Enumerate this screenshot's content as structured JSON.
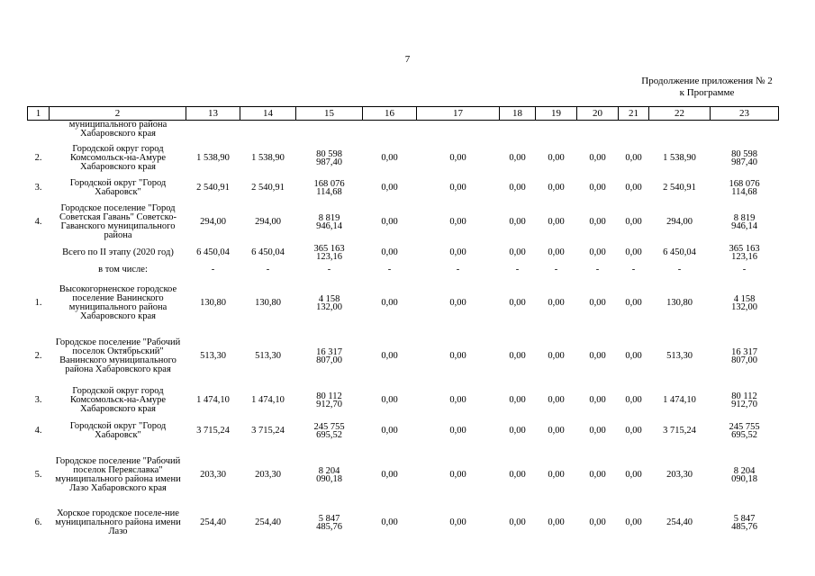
{
  "page_number": "7",
  "caption": {
    "line1": "Продолжение приложения № 2",
    "line2": "к Программе"
  },
  "columns": [
    "1",
    "2",
    "13",
    "14",
    "15",
    "16",
    "17",
    "18",
    "19",
    "20",
    "21",
    "22",
    "23"
  ],
  "continued_row": {
    "name": "муниципального района Хабаровского края"
  },
  "rows": [
    {
      "idx": "2.",
      "name": "Городской округ город Комсомольск-на-Амуре Хабаровского края",
      "c13": "1 538,90",
      "c14": "1 538,90",
      "c15a": "80 598",
      "c15b": "987,40",
      "c16": "0,00",
      "c17": "0,00",
      "c18": "0,00",
      "c19": "0,00",
      "c20": "0,00",
      "c21": "0,00",
      "c22": "1 538,90",
      "c23a": "80 598",
      "c23b": "987,40"
    },
    {
      "idx": "3.",
      "name": "Городской округ \"Город Хабаровск\"",
      "c13": "2 540,91",
      "c14": "2 540,91",
      "c15a": "168 076",
      "c15b": "114,68",
      "c16": "0,00",
      "c17": "0,00",
      "c18": "0,00",
      "c19": "0,00",
      "c20": "0,00",
      "c21": "0,00",
      "c22": "2 540,91",
      "c23a": "168 076",
      "c23b": "114,68"
    },
    {
      "idx": "4.",
      "name": "Городское поселение \"Город Советская Гавань\" Советско-Гаванского муниципального района",
      "c13": "294,00",
      "c14": "294,00",
      "c15a": "8 819",
      "c15b": "946,14",
      "c16": "0,00",
      "c17": "0,00",
      "c18": "0,00",
      "c19": "0,00",
      "c20": "0,00",
      "c21": "0,00",
      "c22": "294,00",
      "c23a": "8 819",
      "c23b": "946,14"
    },
    {
      "idx": "",
      "name": "Всего по II этапу (2020 год)",
      "c13": "6 450,04",
      "c14": "6 450,04",
      "c15a": "365 163",
      "c15b": "123,16",
      "c16": "0,00",
      "c17": "0,00",
      "c18": "0,00",
      "c19": "0,00",
      "c20": "0,00",
      "c21": "0,00",
      "c22": "6 450,04",
      "c23a": "365 163",
      "c23b": "123,16"
    },
    {
      "idx": "",
      "name": "в том числе:",
      "sub": true,
      "c13": "-",
      "c14": "-",
      "c15a": "-",
      "c15b": "",
      "c16": "-",
      "c17": "-",
      "c18": "-",
      "c19": "-",
      "c20": "-",
      "c21": "-",
      "c22": "-",
      "c23a": "-",
      "c23b": ""
    },
    {
      "idx": "1.",
      "name": "Высокогорненское городское поселение Ванинского муниципального района Хабаровского края",
      "c13": "130,80",
      "c14": "130,80",
      "c15a": "4 158",
      "c15b": "132,00",
      "c16": "0,00",
      "c17": "0,00",
      "c18": "0,00",
      "c19": "0,00",
      "c20": "0,00",
      "c21": "0,00",
      "c22": "130,80",
      "c23a": "4 158",
      "c23b": "132,00"
    },
    {
      "idx": "2.",
      "name": "Городское поселение \"Рабочий поселок Октябрьский\" Ванинского муниципального района Хабаровского края",
      "c13": "513,30",
      "c14": "513,30",
      "c15a": "16 317",
      "c15b": "807,00",
      "c16": "0,00",
      "c17": "0,00",
      "c18": "0,00",
      "c19": "0,00",
      "c20": "0,00",
      "c21": "0,00",
      "c22": "513,30",
      "c23a": "16 317",
      "c23b": "807,00"
    },
    {
      "idx": "3.",
      "name": "Городской округ город Комсомольск-на-Амуре Хабаровского края",
      "c13": "1 474,10",
      "c14": "1 474,10",
      "c15a": "80 112",
      "c15b": "912,70",
      "c16": "0,00",
      "c17": "0,00",
      "c18": "0,00",
      "c19": "0,00",
      "c20": "0,00",
      "c21": "0,00",
      "c22": "1 474,10",
      "c23a": "80 112",
      "c23b": "912,70"
    },
    {
      "idx": "4.",
      "name": "Городской округ \"Город Хабаровск\"",
      "c13": "3 715,24",
      "c14": "3 715,24",
      "c15a": "245 755",
      "c15b": "695,52",
      "c16": "0,00",
      "c17": "0,00",
      "c18": "0,00",
      "c19": "0,00",
      "c20": "0,00",
      "c21": "0,00",
      "c22": "3 715,24",
      "c23a": "245 755",
      "c23b": "695,52"
    },
    {
      "idx": "5.",
      "name": "Городское поселение \"Рабочий поселок Переяславка\" муниципального района имени Лазо Хабаровского края",
      "c13": "203,30",
      "c14": "203,30",
      "c15a": "8 204",
      "c15b": "090,18",
      "c16": "0,00",
      "c17": "0,00",
      "c18": "0,00",
      "c19": "0,00",
      "c20": "0,00",
      "c21": "0,00",
      "c22": "203,30",
      "c23a": "8 204",
      "c23b": "090,18"
    },
    {
      "idx": "6.",
      "name": "Хорское городское поселе-ние муниципального района имени Лазо",
      "c13": "254,40",
      "c14": "254,40",
      "c15a": "5 847",
      "c15b": "485,76",
      "c16": "0,00",
      "c17": "0,00",
      "c18": "0,00",
      "c19": "0,00",
      "c20": "0,00",
      "c21": "0,00",
      "c22": "254,40",
      "c23a": "5 847",
      "c23b": "485,76"
    }
  ]
}
